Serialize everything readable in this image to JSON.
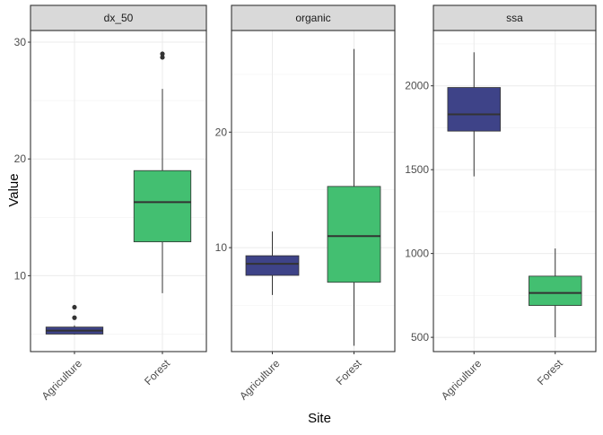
{
  "chart_data": {
    "type": "boxplot",
    "xlabel": "Site",
    "ylabel": "Value",
    "categories": [
      "Agriculture",
      "Forest"
    ],
    "colors": {
      "Agriculture": "#3e4388",
      "Forest": "#43bf71"
    },
    "panel_strip_color": "#d9d9d9",
    "grid": true,
    "facets": [
      {
        "title": "dx_50",
        "ylim": [
          3.5,
          31
        ],
        "yticks": [
          10,
          20,
          30
        ],
        "boxes": [
          {
            "category": "Agriculture",
            "whisker_low": 4.95,
            "q1": 5.0,
            "median": 5.3,
            "q3": 5.6,
            "whisker_high": 5.75,
            "outliers": [
              6.4,
              7.3
            ]
          },
          {
            "category": "Forest",
            "whisker_low": 8.5,
            "q1": 12.9,
            "median": 16.3,
            "q3": 19.0,
            "whisker_high": 26.0,
            "outliers": [
              28.7,
              29.0
            ]
          }
        ]
      },
      {
        "title": "organic",
        "ylim": [
          1.0,
          28.8
        ],
        "yticks": [
          10,
          20
        ],
        "boxes": [
          {
            "category": "Agriculture",
            "whisker_low": 5.9,
            "q1": 7.6,
            "median": 8.6,
            "q3": 9.3,
            "whisker_high": 11.4,
            "outliers": []
          },
          {
            "category": "Forest",
            "whisker_low": 1.5,
            "q1": 7.0,
            "median": 11.0,
            "q3": 15.3,
            "whisker_high": 27.2,
            "outliers": []
          }
        ]
      },
      {
        "title": "ssa",
        "ylim": [
          415,
          2330
        ],
        "yticks": [
          500,
          1000,
          1500,
          2000
        ],
        "boxes": [
          {
            "category": "Agriculture",
            "whisker_low": 1460,
            "q1": 1730,
            "median": 1830,
            "q3": 1990,
            "whisker_high": 2200,
            "outliers": []
          },
          {
            "category": "Forest",
            "whisker_low": 500,
            "q1": 690,
            "median": 765,
            "q3": 865,
            "whisker_high": 1030,
            "outliers": []
          }
        ]
      }
    ]
  }
}
